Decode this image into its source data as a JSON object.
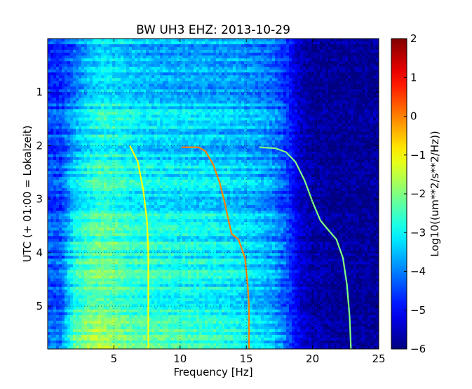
{
  "chart_data": {
    "type": "heatmap",
    "title": "BW UH3 EHZ: 2013-10-29",
    "xlabel": "Frequency [Hz]",
    "ylabel": "UTC (+ 01:00 = Lokalzeit)",
    "colorbar_label": "Log10((um**2/s**2/Hz))",
    "xlim": [
      0,
      25
    ],
    "ylim": [
      5.8,
      0
    ],
    "clim": [
      -6,
      2
    ],
    "colormap": "jet",
    "x_ticks": [
      5,
      10,
      15,
      20,
      25
    ],
    "x_tick_labels": [
      "5",
      "10",
      "15",
      "20",
      "25"
    ],
    "y_ticks": [
      1,
      2,
      3,
      4,
      5
    ],
    "y_tick_labels": [
      "1",
      "2",
      "3",
      "4",
      "5"
    ],
    "colorbar_ticks": [
      2,
      1,
      0,
      -1,
      -2,
      -3,
      -4,
      -5,
      -6
    ],
    "colorbar_tick_labels": [
      "2",
      "1",
      "0",
      "−1",
      "−2",
      "−3",
      "−4",
      "−5",
      "−6"
    ],
    "grid": true,
    "background_level_profile": {
      "frequency_hz": [
        0,
        1,
        2,
        3,
        4,
        5,
        6,
        8,
        10,
        12,
        14,
        16,
        17,
        18,
        19,
        20,
        22,
        25
      ],
      "log10_psd_start": [
        -4.6,
        -4.6,
        -4.2,
        -3.6,
        -3.2,
        -3.2,
        -3.4,
        -3.6,
        -3.6,
        -3.7,
        -3.7,
        -3.9,
        -4.1,
        -4.6,
        -5.5,
        -5.8,
        -5.8,
        -5.8
      ],
      "log10_psd_end": [
        -4.2,
        -4.2,
        -2.4,
        -2.0,
        -1.8,
        -2.0,
        -2.3,
        -2.5,
        -2.6,
        -2.7,
        -2.9,
        -3.3,
        -3.6,
        -4.2,
        -5.2,
        -5.6,
        -5.8,
        -5.8
      ]
    },
    "series": [
      {
        "points": [
          [
            6.2,
            2.0
          ],
          [
            6.8,
            2.3
          ],
          [
            7.2,
            2.8
          ],
          [
            7.5,
            3.4
          ],
          [
            7.6,
            4.0
          ],
          [
            7.6,
            5.0
          ],
          [
            7.6,
            5.8
          ]
        ],
        "log10_psd": -1.0
      },
      {
        "points": [
          [
            10.1,
            2.03
          ],
          [
            11.4,
            2.03
          ],
          [
            11.9,
            2.1
          ],
          [
            12.5,
            2.35
          ],
          [
            13.0,
            2.7
          ],
          [
            13.4,
            3.1
          ],
          [
            13.7,
            3.45
          ],
          [
            13.9,
            3.65
          ],
          [
            14.4,
            3.75
          ],
          [
            14.9,
            4.1
          ],
          [
            15.1,
            4.6
          ],
          [
            15.2,
            5.0
          ],
          [
            15.2,
            5.8
          ]
        ],
        "log10_psd": 0.0
      },
      {
        "points": [
          [
            16.0,
            2.03
          ],
          [
            17.2,
            2.05
          ],
          [
            18.0,
            2.12
          ],
          [
            18.7,
            2.3
          ],
          [
            19.4,
            2.65
          ],
          [
            20.0,
            3.05
          ],
          [
            20.6,
            3.4
          ],
          [
            21.1,
            3.55
          ],
          [
            21.8,
            3.75
          ],
          [
            22.3,
            4.1
          ],
          [
            22.6,
            4.6
          ],
          [
            22.8,
            5.2
          ],
          [
            22.9,
            5.8
          ]
        ],
        "log10_psd": -2.0
      }
    ]
  }
}
